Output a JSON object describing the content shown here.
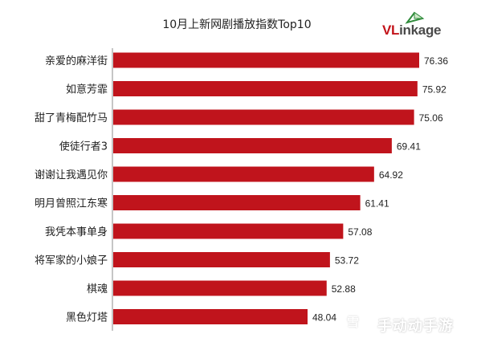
{
  "chart_data": {
    "type": "bar",
    "orientation": "horizontal",
    "title": "10月上新网剧播放指数Top10",
    "categories": [
      "亲爱的麻洋街",
      "如意芳霏",
      "甜了青梅配竹马",
      "使徒行者3",
      "谢谢让我遇见你",
      "明月曾照江东寒",
      "我凭本事单身",
      "将军家的小娘子",
      "棋魂",
      "黑色灯塔"
    ],
    "values": [
      76.36,
      75.92,
      75.06,
      69.41,
      64.92,
      61.41,
      57.08,
      53.72,
      52.88,
      48.04
    ],
    "value_labels": [
      "76.36",
      "75.92",
      "75.06",
      "69.41",
      "64.92",
      "61.41",
      "57.08",
      "53.72",
      "52.88",
      "48.04"
    ],
    "xlim": [
      0,
      80
    ],
    "grid": false,
    "data_labels": "right of bar",
    "bar_color": "#c0141c"
  },
  "logo": {
    "part1": "VL",
    "part2": "inkage",
    "accent_color": "#c3131a"
  },
  "watermark": {
    "text": "手动动手游",
    "icon_text": "雪"
  }
}
